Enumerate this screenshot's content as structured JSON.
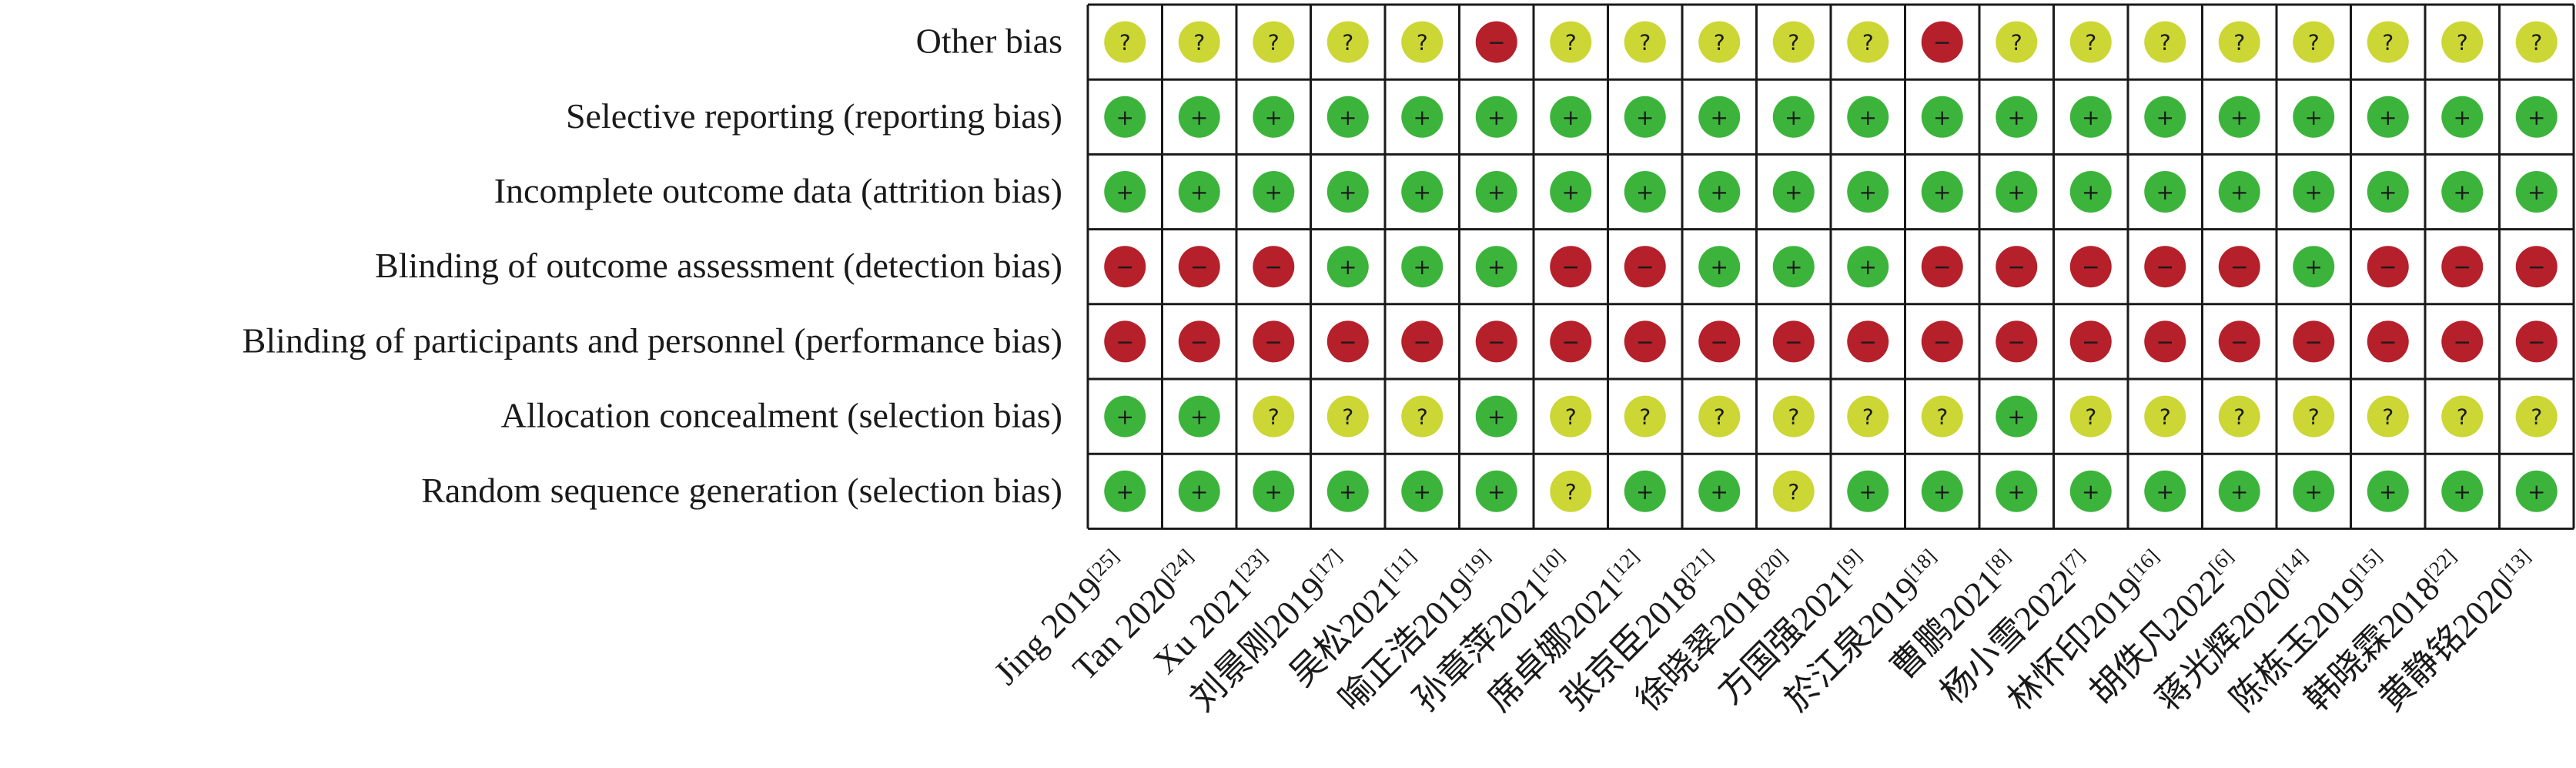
{
  "chart_data": {
    "type": "heatmap",
    "title": "",
    "domains": [
      "Other bias",
      "Selective reporting (reporting bias)",
      "Incomplete outcome data (attrition bias)",
      "Blinding of outcome assessment (detection bias)",
      "Blinding of participants and personnel (performance bias)",
      "Allocation concealment (selection bias)",
      "Random sequence generation (selection bias)"
    ],
    "studies": [
      {
        "name": "Jing 2019",
        "ref": "[25]"
      },
      {
        "name": "Tan 2020",
        "ref": "[24]"
      },
      {
        "name": "Xu 2021",
        "ref": "[23]"
      },
      {
        "name": "刘景刚2019",
        "ref": "[17]"
      },
      {
        "name": "吴松2021",
        "ref": "[11]"
      },
      {
        "name": "喻正浩2019",
        "ref": "[19]"
      },
      {
        "name": "孙章萍2021",
        "ref": "[10]"
      },
      {
        "name": "席卓娜2021",
        "ref": "[12]"
      },
      {
        "name": "张京臣2018",
        "ref": "[21]"
      },
      {
        "name": "徐晓翠2018",
        "ref": "[20]"
      },
      {
        "name": "方国强2021",
        "ref": "[9]"
      },
      {
        "name": "於江泉2019",
        "ref": "[18]"
      },
      {
        "name": "曹鹏2021",
        "ref": "[8]"
      },
      {
        "name": "杨小雪2022",
        "ref": "[7]"
      },
      {
        "name": "林怀印2019",
        "ref": "[16]"
      },
      {
        "name": "胡佚凡2022",
        "ref": "[6]"
      },
      {
        "name": "蒋光辉2020",
        "ref": "[14]"
      },
      {
        "name": "陈栋玉2019",
        "ref": "[15]"
      },
      {
        "name": "韩晓霖2018",
        "ref": "[22]"
      },
      {
        "name": "黄静铭2020",
        "ref": "[13]"
      }
    ],
    "ratings": [
      [
        "?",
        "?",
        "?",
        "?",
        "?",
        "-",
        "?",
        "?",
        "?",
        "?",
        "?",
        "-",
        "?",
        "?",
        "?",
        "?",
        "?",
        "?",
        "?",
        "?"
      ],
      [
        "+",
        "+",
        "+",
        "+",
        "+",
        "+",
        "+",
        "+",
        "+",
        "+",
        "+",
        "+",
        "+",
        "+",
        "+",
        "+",
        "+",
        "+",
        "+",
        "+"
      ],
      [
        "+",
        "+",
        "+",
        "+",
        "+",
        "+",
        "+",
        "+",
        "+",
        "+",
        "+",
        "+",
        "+",
        "+",
        "+",
        "+",
        "+",
        "+",
        "+",
        "+"
      ],
      [
        "-",
        "-",
        "-",
        "+",
        "+",
        "+",
        "-",
        "-",
        "+",
        "+",
        "+",
        "-",
        "-",
        "-",
        "-",
        "-",
        "+",
        "-",
        "-",
        "-"
      ],
      [
        "-",
        "-",
        "-",
        "-",
        "-",
        "-",
        "-",
        "-",
        "-",
        "-",
        "-",
        "-",
        "-",
        "-",
        "-",
        "-",
        "-",
        "-",
        "-",
        "-"
      ],
      [
        "+",
        "+",
        "?",
        "?",
        "?",
        "+",
        "?",
        "?",
        "?",
        "?",
        "?",
        "?",
        "+",
        "?",
        "?",
        "?",
        "?",
        "?",
        "?",
        "?"
      ],
      [
        "+",
        "+",
        "+",
        "+",
        "+",
        "+",
        "?",
        "+",
        "+",
        "?",
        "+",
        "+",
        "+",
        "+",
        "+",
        "+",
        "+",
        "+",
        "+",
        "+"
      ]
    ],
    "symbols": {
      "low": "+",
      "unclear": "?",
      "high": "−"
    },
    "colors": {
      "+": "#3cb43c",
      "?": "#ccd634",
      "-": "#b5202a"
    },
    "grid": true,
    "legend": "none"
  }
}
